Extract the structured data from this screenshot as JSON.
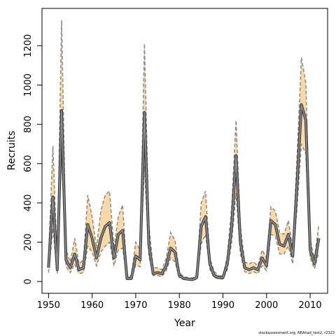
{
  "chart_data": {
    "type": "line",
    "xlabel": "Year",
    "ylabel": "Recruits",
    "xlim": [
      1948.5,
      2014
    ],
    "ylim": [
      -60,
      1390
    ],
    "x_ticks": [
      1950,
      1960,
      1970,
      1980,
      1990,
      2000,
      2010
    ],
    "y_ticks": [
      0,
      200,
      400,
      600,
      800,
      1000,
      1200
    ],
    "x_tick_labels": [
      "1950",
      "1960",
      "1970",
      "1980",
      "1990",
      "2000",
      "2010"
    ],
    "y_tick_labels": [
      "0",
      "200",
      "400",
      "600",
      "800",
      "1000",
      "1200"
    ],
    "grid": false,
    "footnote": "stockassessment.org, NEAhad_test2, r2323",
    "colors": {
      "band_fill": "#f7d9a8",
      "band_edge": "#8a8a8a",
      "estimate_outer": "#3a3a3a",
      "estimate_inner": "#8c8c8c"
    },
    "series": [
      {
        "x": [
          1950,
          1951,
          1952,
          1953,
          1954,
          1955,
          1956,
          1957,
          1958,
          1959,
          1960,
          1961,
          1962,
          1963,
          1964,
          1965,
          1966,
          1967,
          1968,
          1969,
          1970,
          1971,
          1972,
          1973,
          1974,
          1975,
          1976,
          1977,
          1978,
          1979,
          1980,
          1981,
          1982,
          1983,
          1984,
          1985,
          1986,
          1987,
          1988,
          1989,
          1990,
          1991,
          1992,
          1993,
          1994,
          1995,
          1996,
          1997,
          1998,
          1999,
          2000,
          2001,
          2002,
          2003,
          2004,
          2005,
          2006,
          2007,
          2008,
          2009,
          2010,
          2011,
          2012
        ],
        "values": [
          70,
          430,
          60,
          870,
          110,
          70,
          140,
          60,
          70,
          290,
          220,
          120,
          220,
          280,
          300,
          120,
          240,
          260,
          15,
          15,
          130,
          110,
          860,
          190,
          40,
          45,
          40,
          80,
          170,
          150,
          30,
          15,
          12,
          10,
          20,
          280,
          330,
          90,
          30,
          20,
          20,
          90,
          280,
          640,
          200,
          70,
          60,
          70,
          60,
          120,
          80,
          310,
          290,
          190,
          180,
          240,
          130,
          500,
          900,
          820,
          160,
          90,
          220
        ]
      },
      {
        "x": [
          1950,
          1951,
          1952,
          1953,
          1954,
          1955,
          1956,
          1957,
          1958,
          1959,
          1960,
          1961,
          1962,
          1963,
          1964,
          1965,
          1966,
          1967,
          1968,
          1969,
          1970,
          1971,
          1972,
          1973,
          1974,
          1975,
          1976,
          1977,
          1978,
          1979,
          1980,
          1981,
          1982,
          1983,
          1984,
          1985,
          1986,
          1987,
          1988,
          1989,
          1990,
          1991,
          1992,
          1993,
          1994,
          1995,
          1996,
          1997,
          1998,
          1999,
          2000,
          2001,
          2002,
          2003,
          2004,
          2005,
          2006,
          2007,
          2008,
          2009,
          2010,
          2011,
          2012
        ],
        "values": [
          120,
          690,
          90,
          1330,
          160,
          100,
          220,
          90,
          110,
          440,
          330,
          170,
          360,
          440,
          460,
          170,
          330,
          390,
          30,
          30,
          200,
          160,
          1210,
          290,
          70,
          70,
          60,
          120,
          250,
          210,
          45,
          25,
          20,
          18,
          30,
          400,
          460,
          120,
          50,
          30,
          28,
          130,
          380,
          820,
          280,
          100,
          90,
          100,
          80,
          160,
          120,
          380,
          360,
          250,
          240,
          310,
          170,
          640,
          1140,
          1010,
          210,
          120,
          290
        ]
      },
      {
        "x": [
          1950,
          1951,
          1952,
          1953,
          1954,
          1955,
          1956,
          1957,
          1958,
          1959,
          1960,
          1961,
          1962,
          1963,
          1964,
          1965,
          1966,
          1967,
          1968,
          1969,
          1970,
          1971,
          1972,
          1973,
          1974,
          1975,
          1976,
          1977,
          1978,
          1979,
          1980,
          1981,
          1982,
          1983,
          1984,
          1985,
          1986,
          1987,
          1988,
          1989,
          1990,
          1991,
          1992,
          1993,
          1994,
          1995,
          1996,
          1997,
          1998,
          1999,
          2000,
          2001,
          2002,
          2003,
          2004,
          2005,
          2006,
          2007,
          2008,
          2009,
          2010,
          2011,
          2012
        ],
        "values": [
          45,
          270,
          40,
          640,
          75,
          45,
          90,
          40,
          45,
          180,
          150,
          80,
          150,
          180,
          200,
          80,
          160,
          170,
          10,
          10,
          85,
          75,
          590,
          130,
          30,
          30,
          25,
          55,
          120,
          100,
          20,
          10,
          8,
          6,
          12,
          190,
          240,
          60,
          20,
          13,
          13,
          60,
          200,
          450,
          140,
          50,
          40,
          50,
          40,
          80,
          55,
          240,
          230,
          140,
          140,
          180,
          90,
          380,
          700,
          650,
          120,
          65,
          150
        ]
      }
    ]
  }
}
